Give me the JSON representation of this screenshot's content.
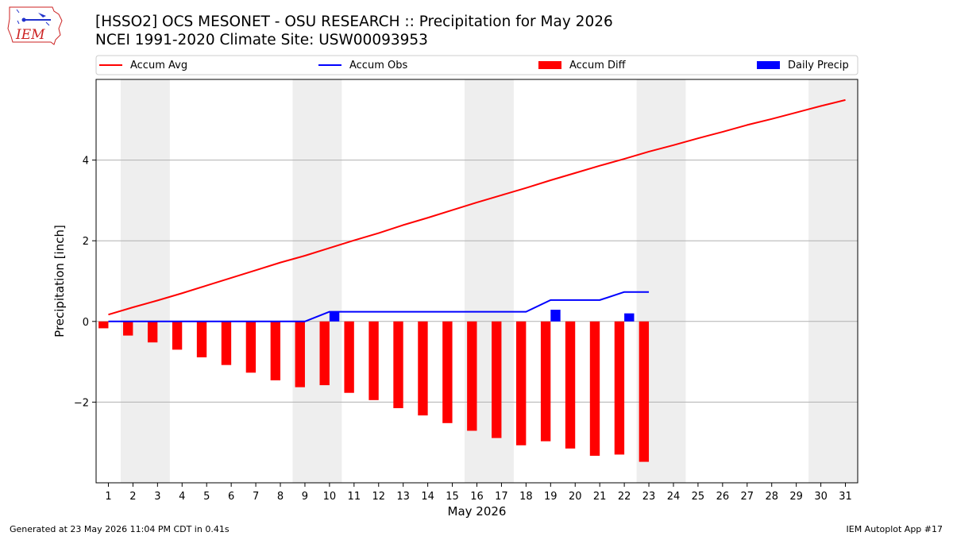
{
  "header": {
    "title": "[HSSO2] OCS MESONET - OSU RESEARCH :: Precipitation for May 2026",
    "subtitle": "NCEI 1991-2020 Climate Site: USW00093953"
  },
  "logo": {
    "text": "IEM",
    "icon": "iowa-state-outline-logo-icon"
  },
  "footer": {
    "generated": "Generated at 23 May 2026 11:04 PM CDT in 0.41s",
    "app": "IEM Autoplot App #17"
  },
  "colors": {
    "avg": "#ff0000",
    "obs": "#0000ff",
    "diff": "#ff0000",
    "daily": "#0000ff",
    "weekend_band": "#eeeeee",
    "grid": "#b0b0b0"
  },
  "chart_data": {
    "type": "bar",
    "xlabel": "May 2026",
    "ylabel": "Precipitation [inch]",
    "xlim": [
      0.5,
      31.5
    ],
    "ylim": [
      -4.0,
      6.0
    ],
    "yticks": [
      -2,
      0,
      2,
      4
    ],
    "grid": "y",
    "legend_placement": "top",
    "x": [
      1,
      2,
      3,
      4,
      5,
      6,
      7,
      8,
      9,
      10,
      11,
      12,
      13,
      14,
      15,
      16,
      17,
      18,
      19,
      20,
      21,
      22,
      23,
      24,
      25,
      26,
      27,
      28,
      29,
      30,
      31
    ],
    "weekend_bands": [
      [
        1.5,
        3.5
      ],
      [
        8.5,
        10.5
      ],
      [
        15.5,
        17.5
      ],
      [
        22.5,
        24.5
      ],
      [
        29.5,
        31.5
      ]
    ],
    "series": [
      {
        "name": "Accum Avg",
        "kind": "line",
        "x": [
          1,
          2,
          3,
          4,
          5,
          6,
          7,
          8,
          9,
          10,
          11,
          12,
          13,
          14,
          15,
          16,
          17,
          18,
          19,
          20,
          21,
          22,
          23,
          24,
          25,
          26,
          27,
          28,
          29,
          30,
          31
        ],
        "values": [
          0.17,
          0.35,
          0.52,
          0.7,
          0.89,
          1.08,
          1.27,
          1.46,
          1.63,
          1.82,
          2.01,
          2.19,
          2.39,
          2.57,
          2.76,
          2.95,
          3.13,
          3.31,
          3.5,
          3.68,
          3.86,
          4.03,
          4.21,
          4.37,
          4.54,
          4.7,
          4.87,
          5.02,
          5.18,
          5.34,
          5.49
        ]
      },
      {
        "name": "Accum Obs",
        "kind": "line",
        "x": [
          1,
          2,
          3,
          4,
          5,
          6,
          7,
          8,
          9,
          10,
          11,
          12,
          13,
          14,
          15,
          16,
          17,
          18,
          19,
          20,
          21,
          22,
          23
        ],
        "values": [
          0,
          0,
          0,
          0,
          0,
          0,
          0,
          0,
          0,
          0.24,
          0.24,
          0.24,
          0.24,
          0.24,
          0.24,
          0.24,
          0.24,
          0.24,
          0.53,
          0.53,
          0.53,
          0.73,
          0.73
        ]
      },
      {
        "name": "Accum Diff",
        "kind": "bar",
        "x": [
          1,
          2,
          3,
          4,
          5,
          6,
          7,
          8,
          9,
          10,
          11,
          12,
          13,
          14,
          15,
          16,
          17,
          18,
          19,
          20,
          21,
          22,
          23
        ],
        "values": [
          -0.17,
          -0.35,
          -0.52,
          -0.7,
          -0.89,
          -1.08,
          -1.27,
          -1.46,
          -1.63,
          -1.58,
          -1.77,
          -1.95,
          -2.15,
          -2.33,
          -2.52,
          -2.71,
          -2.89,
          -3.07,
          -2.97,
          -3.15,
          -3.33,
          -3.3,
          -3.48
        ]
      },
      {
        "name": "Daily Precip",
        "kind": "bar",
        "x": [
          10,
          19,
          22
        ],
        "values": [
          0.24,
          0.29,
          0.2
        ]
      }
    ]
  }
}
